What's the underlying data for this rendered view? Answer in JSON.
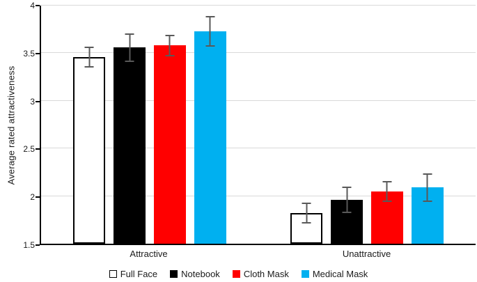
{
  "chart_data": {
    "type": "bar",
    "ylabel": "Average rated attractiveness",
    "ylim": [
      1.5,
      4
    ],
    "yticks": [
      1.5,
      2,
      2.5,
      3,
      3.5,
      4
    ],
    "grid": true,
    "legend_position": "bottom",
    "categories": [
      "Attractive",
      "Unattractive"
    ],
    "series": [
      {
        "name": "Full Face",
        "color": "#FFFFFF",
        "stroke": "#000000",
        "values": [
          3.46,
          1.82
        ],
        "errors": [
          0.11,
          0.11
        ]
      },
      {
        "name": "Notebook",
        "color": "#000000",
        "stroke": "#000000",
        "values": [
          3.56,
          1.96
        ],
        "errors": [
          0.15,
          0.14
        ]
      },
      {
        "name": "Cloth Mask",
        "color": "#FF0000",
        "stroke": "#FF0000",
        "values": [
          3.58,
          2.05
        ],
        "errors": [
          0.11,
          0.11
        ]
      },
      {
        "name": "Medical Mask",
        "color": "#00B0F0",
        "stroke": "#00B0F0",
        "values": [
          3.73,
          2.09
        ],
        "errors": [
          0.16,
          0.15
        ]
      }
    ],
    "error_bar_color": "#595959",
    "gridline_color": "#D9D9D9",
    "axis_color": "#000000",
    "text_color": "#1A1A1A"
  }
}
